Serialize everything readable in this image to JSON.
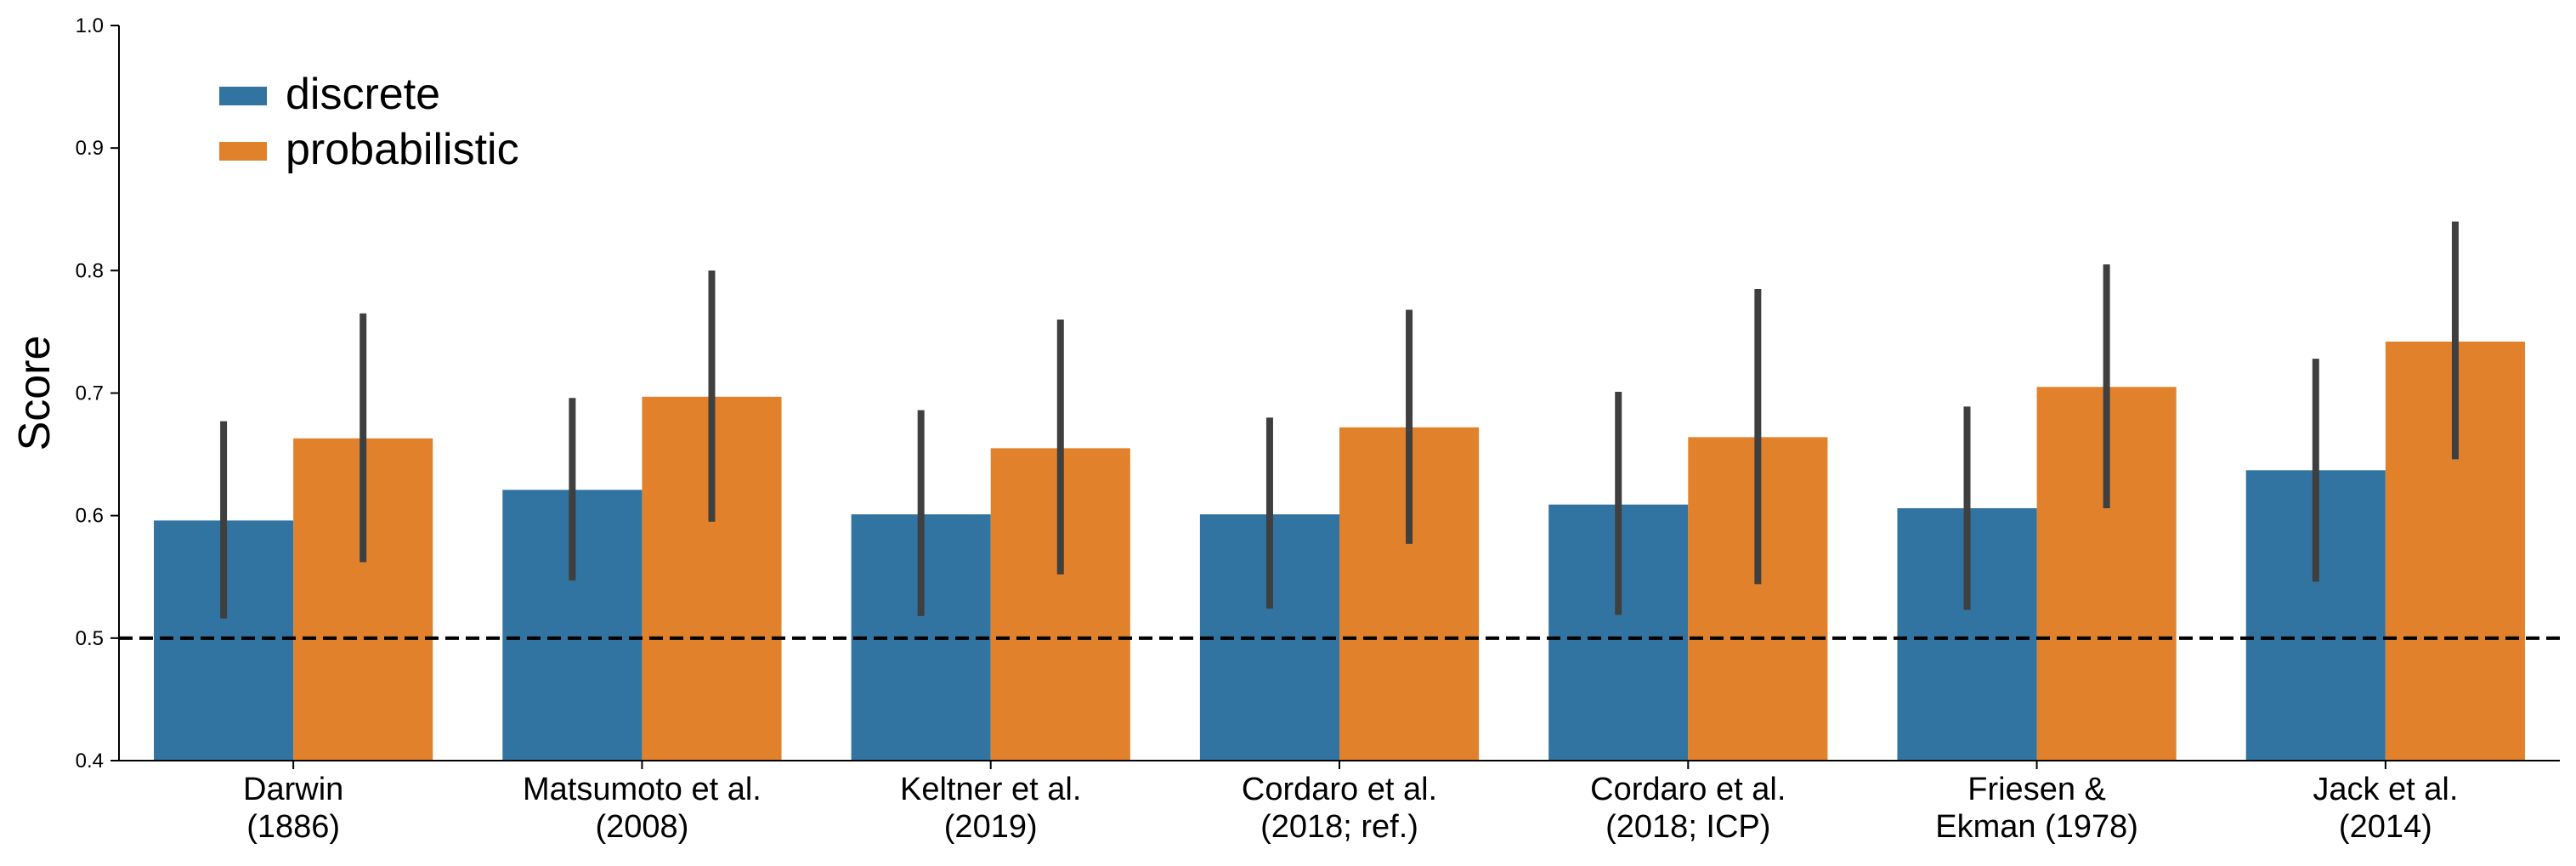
{
  "chart_data": {
    "type": "bar",
    "title": "",
    "xlabel": "",
    "ylabel": "Score",
    "ylim": [
      0.4,
      1.0
    ],
    "yticks": [
      "0.4",
      "0.5",
      "0.6",
      "0.7",
      "0.8",
      "0.9",
      "1.0"
    ],
    "categories": [
      [
        "Darwin",
        "(1886)"
      ],
      [
        "Matsumoto et al.",
        "(2008)"
      ],
      [
        "Keltner et al.",
        "(2019)"
      ],
      [
        "Cordaro et al.",
        "(2018; ref.)"
      ],
      [
        "Cordaro et al.",
        "(2018; ICP)"
      ],
      [
        "Friesen &",
        "Ekman (1978)"
      ],
      [
        "Jack et al.",
        "(2014)"
      ]
    ],
    "series": [
      {
        "name": "discrete",
        "color": "#3274a1",
        "values": [
          0.596,
          0.621,
          0.601,
          0.601,
          0.609,
          0.606,
          0.637
        ],
        "err_low": [
          0.516,
          0.547,
          0.518,
          0.524,
          0.519,
          0.523,
          0.546
        ],
        "err_high": [
          0.677,
          0.696,
          0.686,
          0.68,
          0.701,
          0.689,
          0.728
        ]
      },
      {
        "name": "probabilistic",
        "color": "#e1812c",
        "values": [
          0.663,
          0.697,
          0.655,
          0.672,
          0.664,
          0.705,
          0.742
        ],
        "err_low": [
          0.562,
          0.595,
          0.552,
          0.577,
          0.544,
          0.606,
          0.646
        ],
        "err_high": [
          0.765,
          0.8,
          0.76,
          0.768,
          0.785,
          0.805,
          0.84
        ]
      }
    ],
    "reference_line": 0.5,
    "legend_position": "top-left",
    "grid": false
  }
}
